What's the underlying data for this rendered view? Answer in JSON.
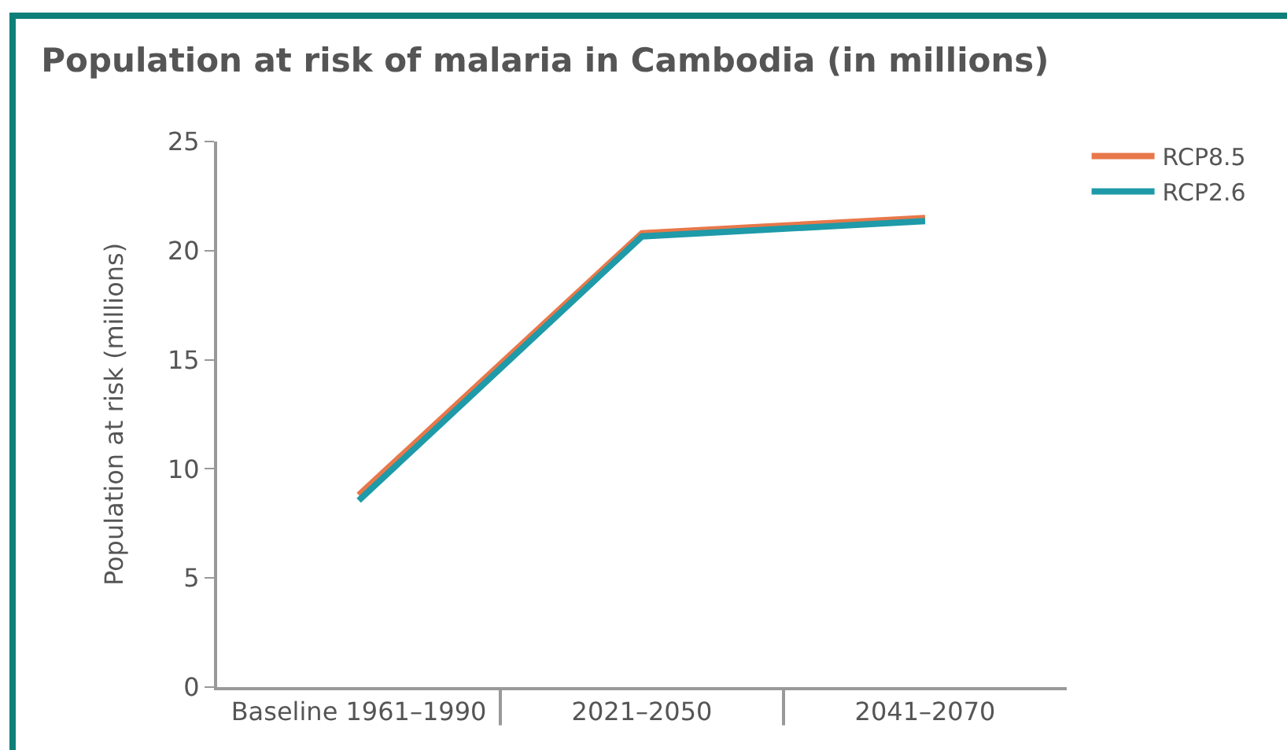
{
  "chart_data": {
    "type": "line",
    "title": "Population at risk of malaria in Cambodia (in millions)",
    "ylabel": "Population at risk (millions)",
    "categories": [
      "Baseline 1961–1990",
      "2021–2050",
      "2041–2070"
    ],
    "series": [
      {
        "name": "RCP8.5",
        "color": "#e8784a",
        "values": [
          8.8,
          20.8,
          21.5
        ]
      },
      {
        "name": "RCP2.6",
        "color": "#1e9aa8",
        "values": [
          8.55,
          20.65,
          21.35
        ]
      }
    ],
    "ylim": [
      0,
      25
    ],
    "yticks": [
      0,
      5,
      10,
      15,
      20,
      25
    ],
    "grid": false,
    "legend": "top right",
    "marker": "none",
    "line_style": "solid"
  }
}
